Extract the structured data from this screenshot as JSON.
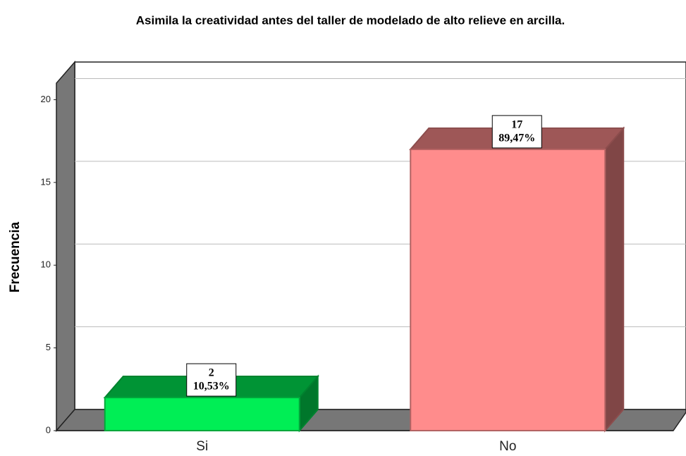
{
  "chart_data": {
    "type": "bar3d",
    "title": "Asimila la creatividad antes del taller de modelado de alto relieve en arcilla.",
    "y_label": "Frecuencia",
    "categories": [
      "Si",
      "No"
    ],
    "values": [
      2,
      17
    ],
    "percent_labels": [
      "10,53%",
      "89,47%"
    ],
    "colors": [
      "#00ee55",
      "#ff8c8c"
    ],
    "ylim": [
      0,
      21
    ],
    "yticks": [
      0,
      5,
      10,
      15,
      20
    ],
    "grid": true
  }
}
